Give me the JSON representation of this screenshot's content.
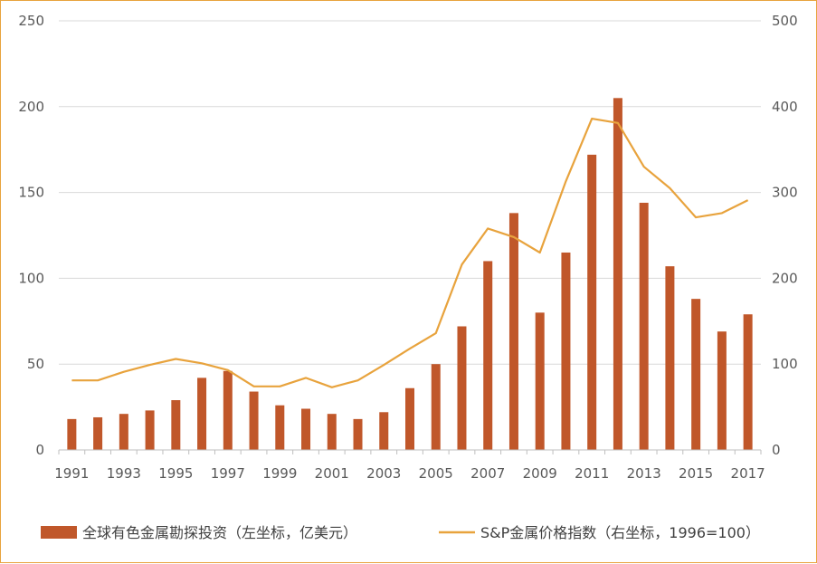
{
  "chart_data": {
    "type": "bar+line",
    "title": "",
    "categories": [
      "1991",
      "1992",
      "1993",
      "1994",
      "1995",
      "1996",
      "1997",
      "1998",
      "1999",
      "2000",
      "2001",
      "2002",
      "2003",
      "2004",
      "2005",
      "2006",
      "2007",
      "2008",
      "2009",
      "2010",
      "2011",
      "2012",
      "2013",
      "2014",
      "2015",
      "2016",
      "2017"
    ],
    "x_tick_labels": [
      "1991",
      "1993",
      "1995",
      "1997",
      "1999",
      "2001",
      "2003",
      "2005",
      "2007",
      "2009",
      "2011",
      "2013",
      "2015",
      "2017"
    ],
    "left_axis": {
      "ylim": [
        0,
        250
      ],
      "ticks": [
        "0",
        "50",
        "100",
        "150",
        "200",
        "250"
      ]
    },
    "right_axis": {
      "ylim": [
        0,
        500
      ],
      "ticks": [
        "0",
        "100",
        "200",
        "300",
        "400",
        "500"
      ]
    },
    "grid": true,
    "legend_position": "bottom",
    "series": [
      {
        "name": "全球有色金属勘探投资（左坐标，亿美元）",
        "type": "bar",
        "axis": "left",
        "color": "#c0572a",
        "values": [
          18,
          19,
          21,
          23,
          29,
          42,
          46,
          34,
          26,
          24,
          21,
          18,
          22,
          36,
          50,
          72,
          110,
          138,
          80,
          115,
          172,
          205,
          144,
          107,
          88,
          69,
          79
        ]
      },
      {
        "name": "S&P金属价格指数（右坐标，1996=100）",
        "type": "line",
        "axis": "right",
        "color": "#e8a33d",
        "values": [
          81,
          81,
          91,
          99,
          106,
          101,
          93,
          74,
          74,
          84,
          73,
          81,
          99,
          118,
          136,
          216,
          258,
          248,
          230,
          313,
          386,
          381,
          330,
          305,
          271,
          276,
          291
        ]
      }
    ]
  }
}
